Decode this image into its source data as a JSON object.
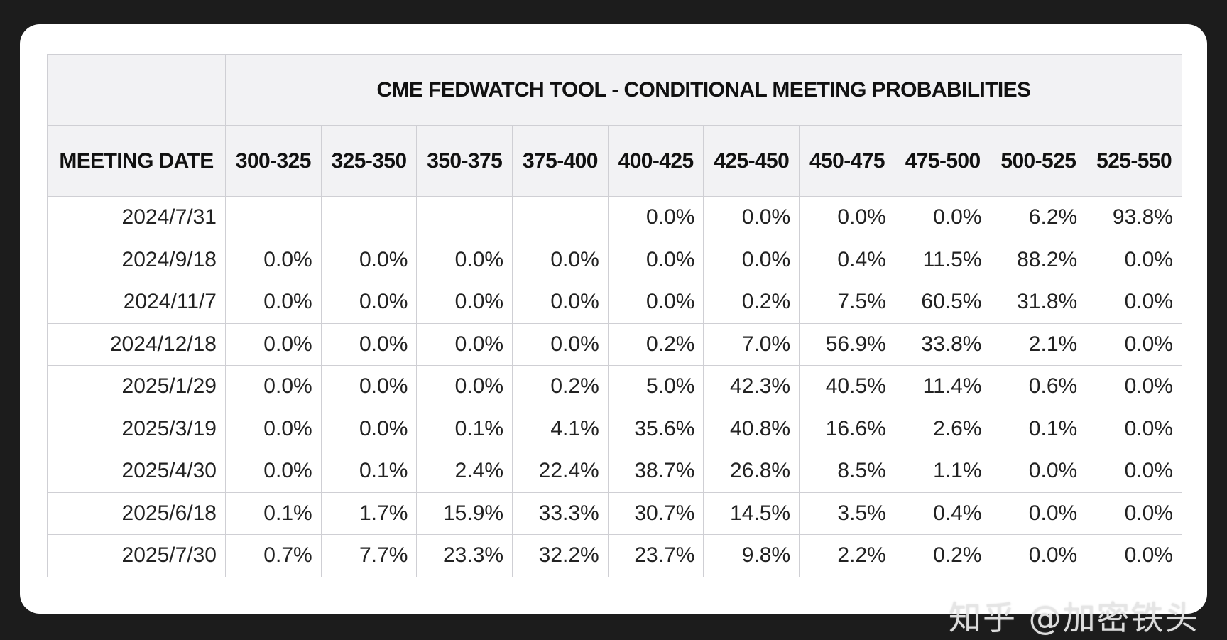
{
  "chart_data": {
    "type": "table",
    "title": "CME FEDWATCH TOOL - CONDITIONAL MEETING PROBABILITIES",
    "row_header": "MEETING DATE",
    "columns": [
      "300-325",
      "325-350",
      "350-375",
      "375-400",
      "400-425",
      "425-450",
      "450-475",
      "475-500",
      "500-525",
      "525-550"
    ],
    "rows": [
      {
        "date": "2024/7/31",
        "values": [
          "",
          "",
          "",
          "",
          "0.0%",
          "0.0%",
          "0.0%",
          "0.0%",
          "6.2%",
          "93.8%"
        ],
        "highlight": 9
      },
      {
        "date": "2024/9/18",
        "values": [
          "0.0%",
          "0.0%",
          "0.0%",
          "0.0%",
          "0.0%",
          "0.0%",
          "0.4%",
          "11.5%",
          "88.2%",
          "0.0%"
        ],
        "highlight": 8
      },
      {
        "date": "2024/11/7",
        "values": [
          "0.0%",
          "0.0%",
          "0.0%",
          "0.0%",
          "0.0%",
          "0.2%",
          "7.5%",
          "60.5%",
          "31.8%",
          "0.0%"
        ],
        "highlight": 7
      },
      {
        "date": "2024/12/18",
        "values": [
          "0.0%",
          "0.0%",
          "0.0%",
          "0.0%",
          "0.2%",
          "7.0%",
          "56.9%",
          "33.8%",
          "2.1%",
          "0.0%"
        ],
        "highlight": 6
      },
      {
        "date": "2025/1/29",
        "values": [
          "0.0%",
          "0.0%",
          "0.0%",
          "0.2%",
          "5.0%",
          "42.3%",
          "40.5%",
          "11.4%",
          "0.6%",
          "0.0%"
        ],
        "highlight": 5
      },
      {
        "date": "2025/3/19",
        "values": [
          "0.0%",
          "0.0%",
          "0.1%",
          "4.1%",
          "35.6%",
          "40.8%",
          "16.6%",
          "2.6%",
          "0.1%",
          "0.0%"
        ],
        "highlight": 5
      },
      {
        "date": "2025/4/30",
        "values": [
          "0.0%",
          "0.1%",
          "2.4%",
          "22.4%",
          "38.7%",
          "26.8%",
          "8.5%",
          "1.1%",
          "0.0%",
          "0.0%"
        ],
        "highlight": 4
      },
      {
        "date": "2025/6/18",
        "values": [
          "0.1%",
          "1.7%",
          "15.9%",
          "33.3%",
          "30.7%",
          "14.5%",
          "3.5%",
          "0.4%",
          "0.0%",
          "0.0%"
        ],
        "highlight": 3
      },
      {
        "date": "2025/7/30",
        "values": [
          "0.7%",
          "7.7%",
          "23.3%",
          "32.2%",
          "23.7%",
          "9.8%",
          "2.2%",
          "0.2%",
          "0.0%",
          "0.0%"
        ],
        "highlight": 3
      }
    ],
    "colors": {
      "highlight": "#c3ecf6",
      "above_current": "#f7f6d2",
      "header": "#f2f2f4",
      "default": "#ffffff"
    }
  },
  "watermark": "知乎 @加密铁头"
}
